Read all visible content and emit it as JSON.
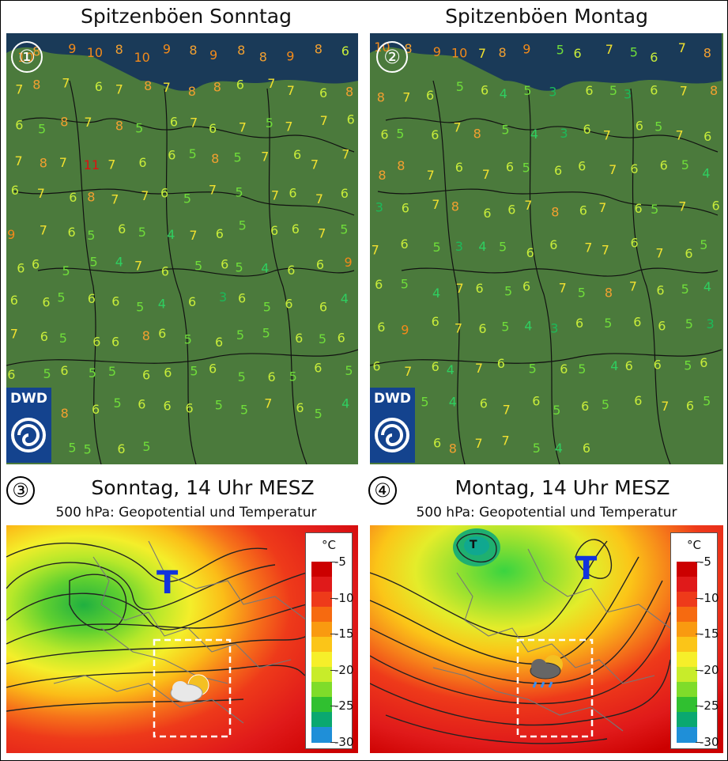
{
  "panel1": {
    "title": "Spitzenböen Sonntag",
    "badge": "①"
  },
  "panel2": {
    "title": "Spitzenböen Montag",
    "badge": "②"
  },
  "panel3": {
    "title": "Sonntag, 14 Uhr MESZ",
    "subtitle": "500 hPa: Geopotential und Temperatur",
    "badge": "③",
    "low_label": "T"
  },
  "panel4": {
    "title": "Montag, 14 Uhr MESZ",
    "subtitle": "500 hPa: Geopotential und Temperatur",
    "badge": "④",
    "low_label": "T"
  },
  "logo": {
    "text": "DWD"
  },
  "legend": {
    "unit": "°C",
    "ticks": [
      "-5",
      "-10",
      "-15",
      "-20",
      "-25",
      "-30"
    ],
    "colors": [
      "#cc0000",
      "#e01a1a",
      "#ee3a1a",
      "#f66a10",
      "#f99a10",
      "#fbc518",
      "#f6ef2a",
      "#c8ec2a",
      "#7fdc2a",
      "#30c030",
      "#0aa870",
      "#1f8fd8"
    ]
  },
  "map_colors": {
    "sea": "#1a3a58",
    "land": "#4b7a3c",
    "border": "#111111"
  },
  "gusts_sunday": {
    "values": [
      "10",
      "8",
      "9",
      "10",
      "8",
      "10",
      "9",
      "8",
      "9",
      "8",
      "8",
      "9",
      "8",
      "6",
      "7",
      "8",
      "7",
      "6",
      "7",
      "8",
      "7",
      "8",
      "8",
      "6",
      "7",
      "7",
      "6",
      "8",
      "6",
      "5",
      "8",
      "7",
      "8",
      "5",
      "6",
      "7",
      "6",
      "7",
      "5",
      "7",
      "7",
      "6",
      "7",
      "8",
      "7",
      "11",
      "7",
      "6",
      "6",
      "5",
      "8",
      "5",
      "7",
      "6",
      "7",
      "7",
      "6",
      "7",
      "6",
      "8",
      "7",
      "7",
      "6",
      "5",
      "7",
      "5",
      "7",
      "6",
      "7",
      "6",
      "9",
      "7",
      "6",
      "5",
      "6",
      "5",
      "4",
      "7",
      "6",
      "5",
      "6",
      "6",
      "7",
      "5",
      "6",
      "6",
      "5",
      "5",
      "4",
      "7",
      "6",
      "5",
      "6",
      "5",
      "4",
      "6",
      "6",
      "9",
      "6",
      "6",
      "5",
      "6",
      "6",
      "5",
      "4",
      "6",
      "3",
      "6",
      "5",
      "6",
      "6",
      "4",
      "7",
      "6",
      "5",
      "6",
      "6",
      "8",
      "6",
      "5",
      "6",
      "5",
      "5",
      "6",
      "5",
      "6",
      "6",
      "5",
      "6",
      "5",
      "5",
      "6",
      "6",
      "5",
      "6",
      "5",
      "6",
      "5",
      "6",
      "5",
      "4",
      "6",
      "8",
      "6",
      "5",
      "6",
      "6",
      "6",
      "5",
      "5",
      "7",
      "6",
      "5",
      "4",
      "6",
      "5",
      "5",
      "5",
      "6",
      "5"
    ]
  },
  "gusts_monday": {
    "values": [
      "10",
      "8",
      "9",
      "10",
      "7",
      "8",
      "9",
      "5",
      "6",
      "7",
      "5",
      "6",
      "7",
      "8",
      "8",
      "7",
      "6",
      "5",
      "6",
      "4",
      "5",
      "3",
      "6",
      "5",
      "3",
      "6",
      "7",
      "8",
      "6",
      "5",
      "6",
      "7",
      "8",
      "5",
      "4",
      "3",
      "6",
      "7",
      "6",
      "5",
      "7",
      "6",
      "8",
      "8",
      "7",
      "6",
      "7",
      "6",
      "5",
      "6",
      "6",
      "7",
      "6",
      "6",
      "5",
      "4",
      "3",
      "6",
      "7",
      "8",
      "6",
      "6",
      "7",
      "8",
      "6",
      "7",
      "6",
      "5",
      "7",
      "6",
      "7",
      "6",
      "5",
      "3",
      "4",
      "5",
      "6",
      "6",
      "7",
      "7",
      "6",
      "7",
      "6",
      "5",
      "6",
      "5",
      "4",
      "7",
      "6",
      "5",
      "6",
      "7",
      "5",
      "8",
      "7",
      "6",
      "5",
      "4",
      "6",
      "9",
      "6",
      "7",
      "6",
      "5",
      "4",
      "3",
      "6",
      "5",
      "6",
      "6",
      "5",
      "3",
      "6",
      "7",
      "6",
      "4",
      "7",
      "6",
      "5",
      "6",
      "5",
      "4",
      "6",
      "6",
      "5",
      "6",
      "5",
      "6",
      "5",
      "4",
      "6",
      "7",
      "6",
      "5",
      "6",
      "5",
      "6",
      "7",
      "6",
      "5",
      "6",
      "5",
      "6",
      "8",
      "7",
      "7",
      "5",
      "4",
      "6"
    ]
  }
}
